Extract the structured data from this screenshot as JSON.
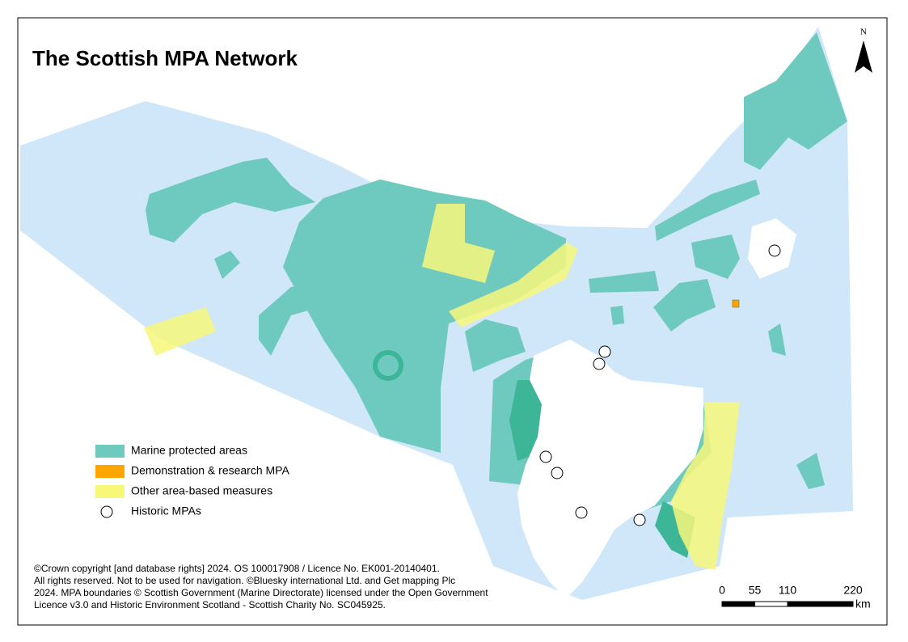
{
  "title": "The Scottish MPA Network",
  "north_arrow": "N",
  "legend": [
    {
      "label": "Marine protected areas",
      "color": "#6ec9bf"
    },
    {
      "label": "Demonstration & research MPA",
      "color": "#ffa500"
    },
    {
      "label": "Other area-based measures",
      "color": "#f7f77a"
    },
    {
      "label": "Historic MPAs"
    }
  ],
  "copyright": [
    "©Crown copyright [and database rights] 2024. OS 100017908 / Licence No. EK001-20140401.",
    "All rights reserved. Not to be used for navigation. ©Bluesky international Ltd. and Get mapping Plc",
    "2024.  MPA boundaries © Scottish Government (Marine Directorate) licensed under the Open Government",
    "Licence v3.0 and Historic Environment Scotland - Scottish Charity No. SC045925."
  ],
  "scale_bar": {
    "ticks": [
      0,
      55,
      110,
      220
    ],
    "unit": "km"
  }
}
